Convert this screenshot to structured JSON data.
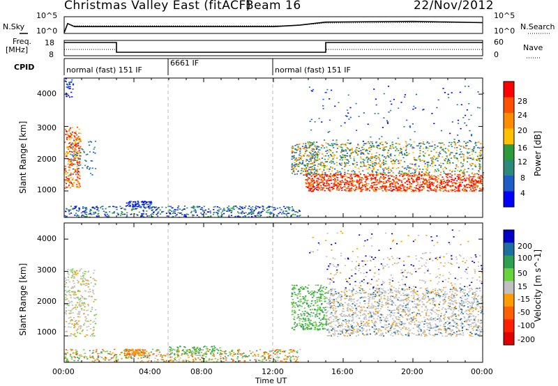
{
  "header": {
    "title": "Christmas Valley East (fitACF)",
    "beam": "Beam 16",
    "date": "22/Nov/2012"
  },
  "noise_panel": {
    "left_label": "N.Sky",
    "right_label": "N.Search",
    "left_ticks": [
      "10^5",
      "10^0"
    ],
    "right_ticks": [
      "10^5",
      "10^0"
    ]
  },
  "freq_panel": {
    "left_label_line1": "Freq.",
    "left_label_line2": "[MHz]",
    "right_label": "Nave",
    "left_ticks": [
      "18",
      "8"
    ],
    "right_ticks": [
      "60",
      "0"
    ]
  },
  "cpid": {
    "label": "CPID",
    "segments": [
      "normal (fast) 151 IF",
      "6661 IF",
      "normal (fast) 151 IF"
    ]
  },
  "x_axis": {
    "title": "Time UT",
    "ticks": [
      "00:00",
      "04:00",
      "08:00",
      "12:00",
      "16:00",
      "20:00",
      "00:00"
    ]
  },
  "power_panel": {
    "y_label": "Slant Range [km]",
    "y_ticks": [
      "4000",
      "3000",
      "2000",
      "1000"
    ],
    "colorbar_label": "Power [dB]",
    "colorbar_ticks": [
      "28",
      "24",
      "20",
      "16",
      "12",
      "8",
      "4"
    ],
    "colorbar_colors": [
      "#ff0000",
      "#ff4f00",
      "#ff8c00",
      "#ffc000",
      "#2e9a3a",
      "#2d8a7a",
      "#1e5cc8",
      "#0000ff"
    ]
  },
  "velocity_panel": {
    "y_label": "Slant Range [km]",
    "y_ticks": [
      "4000",
      "3000",
      "2000",
      "1000"
    ],
    "colorbar_label": "Velocity [m s^-1]",
    "colorbar_ticks": [
      "200",
      "100",
      "50",
      "15",
      "-15",
      "-50",
      "-100",
      "-200"
    ],
    "colorbar_colors": [
      "#0000c8",
      "#1e6ea0",
      "#2ea050",
      "#6ad23c",
      "#c0c0c0",
      "#ff9c00",
      "#ff6000",
      "#ff2000",
      "#e00000"
    ]
  },
  "chart_data": [
    {
      "type": "heatmap",
      "title": "Power [dB]",
      "xlabel": "Time UT",
      "ylabel": "Slant Range [km]",
      "xlim": [
        "00:00",
        "24:00"
      ],
      "ylim": [
        180,
        4500
      ],
      "clim": [
        0,
        30
      ],
      "regions": [
        {
          "t": [
            0.0,
            1.0
          ],
          "range": [
            1000,
            3000
          ],
          "level": "16-28"
        },
        {
          "t": [
            0.0,
            13.0
          ],
          "range": [
            180,
            600
          ],
          "level": "4-12"
        },
        {
          "t": [
            13.5,
            24.0
          ],
          "range": [
            1000,
            1500
          ],
          "level": "24-28"
        },
        {
          "t": [
            13.5,
            24.0
          ],
          "range": [
            1500,
            2500
          ],
          "level": "12-20"
        },
        {
          "t": [
            14.0,
            24.0
          ],
          "range": [
            2500,
            4500
          ],
          "level": "4-8"
        }
      ]
    },
    {
      "type": "heatmap",
      "title": "Velocity [m s^-1]",
      "xlabel": "Time UT",
      "ylabel": "Slant Range [km]",
      "xlim": [
        "00:00",
        "24:00"
      ],
      "ylim": [
        180,
        4500
      ],
      "clim": [
        -200,
        200
      ],
      "regions": [
        {
          "t": [
            0.0,
            1.0
          ],
          "range": [
            1000,
            3000
          ],
          "velocity": "-15 to 15"
        },
        {
          "t": [
            3.5,
            4.5
          ],
          "range": [
            300,
            600
          ],
          "velocity": "-50 to -100"
        },
        {
          "t": [
            6.0,
            9.0
          ],
          "range": [
            300,
            700
          ],
          "velocity": "15 to 50"
        },
        {
          "t": [
            13.0,
            15.0
          ],
          "range": [
            1200,
            2500
          ],
          "velocity": "15 to 50"
        },
        {
          "t": [
            15.0,
            24.0
          ],
          "range": [
            1000,
            3000
          ],
          "velocity": "-15 to 15"
        }
      ]
    },
    {
      "type": "line",
      "title": "Freq. [MHz]",
      "x": [
        0,
        3,
        3,
        15,
        15,
        24
      ],
      "series": [
        {
          "values": [
            17,
            17,
            10,
            10,
            17,
            17
          ]
        }
      ],
      "ylim": [
        8,
        18
      ]
    },
    {
      "type": "line",
      "title": "N.Sky",
      "x": [
        0,
        0.2,
        0.6,
        12,
        13.5,
        15,
        20,
        24
      ],
      "series": [
        {
          "values": [
            1,
            1000,
            100,
            100,
            300,
            3000,
            5000,
            2000
          ]
        }
      ],
      "ylim": [
        1,
        100000
      ],
      "log": true
    }
  ]
}
